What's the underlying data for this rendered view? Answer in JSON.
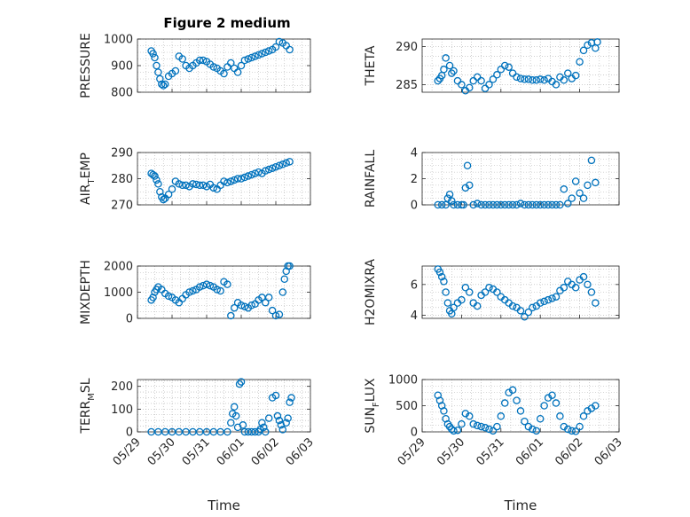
{
  "figure": {
    "title": "Figure 2 medium"
  },
  "chart_data": [
    {
      "type": "scatter",
      "ylabel": "PRESSURE",
      "ylabel_sub": "",
      "ylim": [
        800,
        1000
      ],
      "yticks": [
        800,
        900,
        1000
      ],
      "xlim": [
        0,
        5
      ],
      "xticks": [],
      "xlabel": "",
      "grid": "on",
      "color": "#0072BD",
      "x": [
        0.4,
        0.45,
        0.5,
        0.55,
        0.6,
        0.65,
        0.7,
        0.75,
        0.8,
        0.9,
        1.0,
        1.1,
        1.2,
        1.3,
        1.4,
        1.5,
        1.6,
        1.7,
        1.8,
        1.9,
        2.0,
        2.1,
        2.2,
        2.3,
        2.4,
        2.5,
        2.6,
        2.7,
        2.8,
        2.9,
        3.0,
        3.1,
        3.2,
        3.3,
        3.4,
        3.5,
        3.6,
        3.7,
        3.8,
        3.9,
        4.0,
        4.1,
        4.2,
        4.3,
        4.4
      ],
      "y": [
        955,
        945,
        930,
        900,
        875,
        850,
        830,
        825,
        830,
        860,
        870,
        880,
        935,
        925,
        900,
        890,
        900,
        910,
        920,
        920,
        915,
        905,
        895,
        890,
        880,
        870,
        895,
        910,
        890,
        875,
        900,
        920,
        925,
        930,
        935,
        940,
        945,
        950,
        955,
        960,
        970,
        990,
        985,
        975,
        960
      ]
    },
    {
      "type": "scatter",
      "ylabel": "THETA",
      "ylabel_sub": "",
      "ylim": [
        284,
        291
      ],
      "yticks": [
        285,
        290
      ],
      "xlim": [
        0,
        5
      ],
      "xticks": [],
      "xlabel": "",
      "grid": "on",
      "color": "#0072BD",
      "x": [
        0.4,
        0.45,
        0.5,
        0.55,
        0.6,
        0.7,
        0.75,
        0.8,
        0.9,
        1.0,
        1.1,
        1.2,
        1.3,
        1.4,
        1.5,
        1.6,
        1.7,
        1.8,
        1.9,
        2.0,
        2.1,
        2.2,
        2.3,
        2.4,
        2.5,
        2.6,
        2.7,
        2.8,
        2.9,
        3.0,
        3.1,
        3.2,
        3.3,
        3.4,
        3.5,
        3.6,
        3.7,
        3.8,
        3.9,
        4.0,
        4.1,
        4.2,
        4.3,
        4.4,
        4.45
      ],
      "y": [
        285.5,
        285.8,
        286.2,
        287.0,
        288.5,
        287.5,
        286.5,
        286.8,
        285.5,
        285.0,
        284.2,
        284.6,
        285.5,
        286.0,
        285.5,
        284.5,
        285.0,
        285.7,
        286.3,
        287.0,
        287.5,
        287.3,
        286.5,
        286.0,
        285.8,
        285.7,
        285.7,
        285.6,
        285.6,
        285.7,
        285.6,
        285.8,
        285.4,
        285.0,
        286.0,
        285.6,
        286.5,
        285.8,
        286.2,
        288.0,
        289.5,
        290.2,
        290.5,
        289.8,
        290.6
      ]
    },
    {
      "type": "scatter",
      "ylabel": "AIR",
      "ylabel_sub": "T",
      "ylabel_rest": "EMP",
      "ylim": [
        270,
        290
      ],
      "yticks": [
        270,
        280,
        290
      ],
      "xlim": [
        0,
        5
      ],
      "xticks": [],
      "xlabel": "",
      "grid": "on",
      "color": "#0072BD",
      "x": [
        0.4,
        0.45,
        0.5,
        0.55,
        0.6,
        0.65,
        0.7,
        0.75,
        0.8,
        0.9,
        1.0,
        1.1,
        1.2,
        1.3,
        1.4,
        1.5,
        1.6,
        1.7,
        1.8,
        1.9,
        2.0,
        2.1,
        2.2,
        2.3,
        2.4,
        2.5,
        2.6,
        2.7,
        2.8,
        2.9,
        3.0,
        3.1,
        3.2,
        3.3,
        3.4,
        3.5,
        3.6,
        3.7,
        3.8,
        3.9,
        4.0,
        4.1,
        4.2,
        4.3,
        4.4
      ],
      "y": [
        282,
        281.5,
        281,
        279.5,
        278,
        275,
        273,
        272,
        272.5,
        274,
        276,
        279,
        278,
        277.5,
        277.5,
        277,
        278,
        277.8,
        277.5,
        277.5,
        277,
        277.8,
        276.5,
        276,
        277.5,
        279,
        278.5,
        279,
        279.5,
        280,
        280,
        280.5,
        281,
        281.5,
        282,
        282.5,
        282,
        283,
        283.5,
        284,
        284.5,
        285,
        285.5,
        286,
        286.5
      ]
    },
    {
      "type": "scatter",
      "ylabel": "RAINFALL",
      "ylabel_sub": "",
      "ylim": [
        0,
        4
      ],
      "yticks": [
        0,
        2,
        4
      ],
      "xlim": [
        0,
        5
      ],
      "xticks": [],
      "xlabel": "",
      "grid": "on",
      "color": "#0072BD",
      "x": [
        0.4,
        0.5,
        0.6,
        0.65,
        0.7,
        0.75,
        0.8,
        0.9,
        1.0,
        1.05,
        1.1,
        1.15,
        1.2,
        1.3,
        1.4,
        1.5,
        1.6,
        1.7,
        1.8,
        1.9,
        2.0,
        2.1,
        2.2,
        2.3,
        2.4,
        2.5,
        2.6,
        2.7,
        2.8,
        2.9,
        3.0,
        3.1,
        3.2,
        3.3,
        3.4,
        3.5,
        3.6,
        3.7,
        3.8,
        3.9,
        4.0,
        4.1,
        4.2,
        4.3,
        4.4
      ],
      "y": [
        0,
        0,
        0,
        0.5,
        0.8,
        0.3,
        0,
        0,
        0,
        0,
        1.3,
        3.0,
        1.5,
        0,
        0.1,
        0,
        0,
        0,
        0,
        0,
        0,
        0,
        0,
        0,
        0,
        0.1,
        0,
        0,
        0,
        0,
        0,
        0,
        0,
        0,
        0,
        0,
        1.2,
        0.1,
        0.5,
        1.8,
        0.9,
        0.5,
        1.5,
        3.4,
        1.7
      ]
    },
    {
      "type": "scatter",
      "ylabel": "MIXDEPTH",
      "ylabel_sub": "",
      "ylim": [
        0,
        2000
      ],
      "yticks": [
        0,
        1000,
        2000
      ],
      "xlim": [
        0,
        5
      ],
      "xticks": [],
      "xlabel": "",
      "grid": "on",
      "color": "#0072BD",
      "x": [
        0.4,
        0.45,
        0.5,
        0.55,
        0.6,
        0.7,
        0.8,
        0.9,
        1.0,
        1.1,
        1.2,
        1.3,
        1.4,
        1.5,
        1.6,
        1.7,
        1.8,
        1.9,
        2.0,
        2.1,
        2.2,
        2.3,
        2.4,
        2.5,
        2.6,
        2.7,
        2.8,
        2.9,
        3.0,
        3.1,
        3.2,
        3.3,
        3.4,
        3.5,
        3.6,
        3.7,
        3.8,
        3.9,
        4.0,
        4.1,
        4.2,
        4.25,
        4.3,
        4.35,
        4.4
      ],
      "y": [
        700,
        800,
        1000,
        1100,
        1200,
        1100,
        950,
        850,
        800,
        700,
        600,
        750,
        900,
        1000,
        1050,
        1100,
        1200,
        1250,
        1300,
        1250,
        1200,
        1100,
        1050,
        1400,
        1300,
        100,
        400,
        600,
        500,
        450,
        400,
        500,
        550,
        700,
        800,
        600,
        800,
        300,
        100,
        150,
        1000,
        1500,
        1800,
        2000,
        2000
      ]
    },
    {
      "type": "scatter",
      "ylabel": "H2OMIXRA",
      "ylabel_sub": "",
      "ylim": [
        3.8,
        7.2
      ],
      "yticks": [
        4,
        6
      ],
      "xlim": [
        0,
        5
      ],
      "xticks": [],
      "xlabel": "",
      "grid": "on",
      "color": "#0072BD",
      "x": [
        0.4,
        0.45,
        0.5,
        0.55,
        0.6,
        0.65,
        0.7,
        0.75,
        0.8,
        0.9,
        1.0,
        1.1,
        1.2,
        1.3,
        1.4,
        1.5,
        1.6,
        1.7,
        1.8,
        1.9,
        2.0,
        2.1,
        2.2,
        2.3,
        2.4,
        2.5,
        2.6,
        2.7,
        2.8,
        2.9,
        3.0,
        3.1,
        3.2,
        3.3,
        3.4,
        3.5,
        3.6,
        3.7,
        3.8,
        3.9,
        4.0,
        4.1,
        4.2,
        4.3,
        4.4
      ],
      "y": [
        7.0,
        6.8,
        6.5,
        6.2,
        5.5,
        4.8,
        4.3,
        4.1,
        4.5,
        4.8,
        5.0,
        5.8,
        5.5,
        4.8,
        4.6,
        5.3,
        5.5,
        5.8,
        5.7,
        5.5,
        5.2,
        5.0,
        4.8,
        4.6,
        4.5,
        4.3,
        3.9,
        4.2,
        4.5,
        4.6,
        4.8,
        4.9,
        5.0,
        5.1,
        5.2,
        5.6,
        5.8,
        6.2,
        6.0,
        5.8,
        6.3,
        6.5,
        6.0,
        5.5,
        4.8
      ]
    },
    {
      "type": "scatter",
      "ylabel": "TERR",
      "ylabel_sub": "M",
      "ylabel_rest": "SL",
      "ylim": [
        0,
        230
      ],
      "yticks": [
        0,
        100,
        200
      ],
      "xlim": [
        0,
        5
      ],
      "xticks": [
        "05/29",
        "05/30",
        "05/31",
        "06/01",
        "06/02",
        "06/03"
      ],
      "xlabel": "Time",
      "grid": "on",
      "color": "#0072BD",
      "x": [
        0.4,
        0.6,
        0.8,
        1.0,
        1.2,
        1.4,
        1.6,
        1.8,
        2.0,
        2.2,
        2.4,
        2.6,
        2.7,
        2.75,
        2.8,
        2.85,
        2.9,
        2.95,
        3.0,
        3.05,
        3.1,
        3.2,
        3.3,
        3.4,
        3.5,
        3.55,
        3.6,
        3.65,
        3.7,
        3.8,
        3.9,
        4.0,
        4.05,
        4.1,
        4.15,
        4.2,
        4.3,
        4.35,
        4.4,
        4.45
      ],
      "y": [
        0,
        0,
        0,
        0,
        0,
        0,
        0,
        0,
        0,
        0,
        0,
        0,
        40,
        80,
        110,
        70,
        20,
        210,
        220,
        30,
        0,
        0,
        0,
        0,
        0,
        10,
        40,
        20,
        0,
        60,
        150,
        160,
        70,
        50,
        30,
        10,
        40,
        60,
        130,
        150
      ]
    },
    {
      "type": "scatter",
      "ylabel": "SUN",
      "ylabel_sub": "F",
      "ylabel_rest": "LUX",
      "ylim": [
        0,
        1000
      ],
      "yticks": [
        0,
        500,
        1000
      ],
      "xlim": [
        0,
        5
      ],
      "xticks": [
        "05/29",
        "05/30",
        "05/31",
        "06/01",
        "06/02",
        "06/03"
      ],
      "xlabel": "Time",
      "grid": "on",
      "color": "#0072BD",
      "x": [
        0.4,
        0.45,
        0.5,
        0.55,
        0.6,
        0.65,
        0.7,
        0.75,
        0.8,
        0.9,
        1.0,
        1.1,
        1.2,
        1.3,
        1.4,
        1.5,
        1.6,
        1.7,
        1.8,
        1.9,
        2.0,
        2.1,
        2.2,
        2.3,
        2.4,
        2.5,
        2.6,
        2.7,
        2.8,
        2.9,
        3.0,
        3.1,
        3.2,
        3.3,
        3.4,
        3.5,
        3.6,
        3.7,
        3.8,
        3.9,
        4.0,
        4.1,
        4.2,
        4.3,
        4.4
      ],
      "y": [
        700,
        600,
        500,
        400,
        250,
        150,
        100,
        50,
        20,
        30,
        150,
        350,
        300,
        150,
        120,
        100,
        80,
        50,
        20,
        100,
        300,
        550,
        750,
        800,
        600,
        400,
        200,
        100,
        50,
        20,
        250,
        500,
        650,
        700,
        550,
        300,
        100,
        50,
        20,
        10,
        100,
        300,
        400,
        450,
        500
      ]
    }
  ]
}
